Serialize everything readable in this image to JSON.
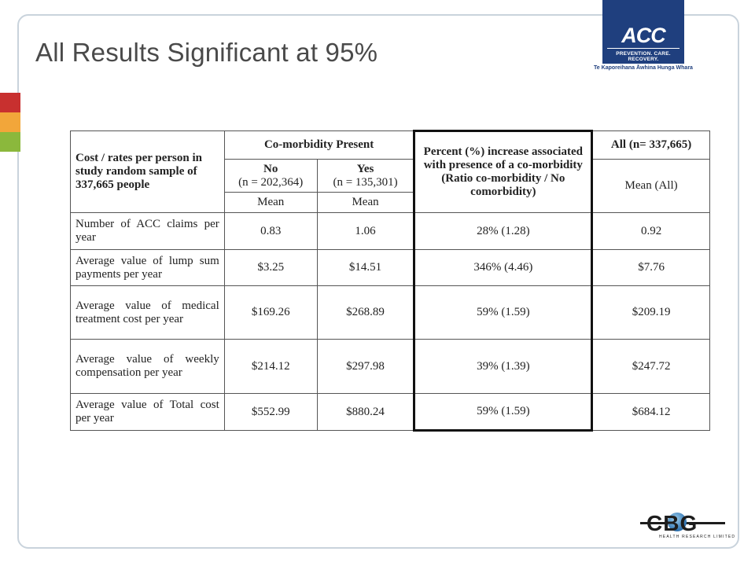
{
  "slide": {
    "title": "All Results Significant at 95%"
  },
  "logos": {
    "acc_mark": "ACC",
    "acc_strap": "PREVENTION. CARE. RECOVERY.",
    "acc_sub": "Te Kaporeihana Āwhina Hunga Whara",
    "cbg_letters": "CBG",
    "cbg_tag": "HEALTH RESEARCH LIMITED"
  },
  "table": {
    "row_header": "Cost / rates per person in study random sample of 337,665 people",
    "group_header": "Co-morbidity Present",
    "no_label": "No",
    "no_n": "(n = 202,364)",
    "yes_label": "Yes",
    "yes_n": "(n = 135,301)",
    "mean_label": "Mean",
    "pct_header": "Percent (%) increase associated with presence of a co-morbidity (Ratio co-morbidity / No comorbidity)",
    "all_header": "All (n= 337,665)",
    "mean_all_label": "Mean (All)",
    "rows": [
      {
        "label": "Number of ACC claims per year",
        "no": "0.83",
        "yes": "1.06",
        "pct": "28% (1.28)",
        "all": "0.92"
      },
      {
        "label": "Average value of lump sum payments per year",
        "no": "$3.25",
        "yes": "$14.51",
        "pct": "346% (4.46)",
        "all": "$7.76"
      },
      {
        "label": "Average value of medical treatment cost per year",
        "no": "$169.26",
        "yes": "$268.89",
        "pct": "59% (1.59)",
        "all": "$209.19"
      },
      {
        "label": "Average value of weekly compensation per year",
        "no": "$214.12",
        "yes": "$297.98",
        "pct": "39% (1.39)",
        "all": "$247.72"
      },
      {
        "label": "Average value of Total cost per year",
        "no": "$552.99",
        "yes": "$880.24",
        "pct": "59% (1.59)",
        "all": "$684.12"
      }
    ]
  }
}
